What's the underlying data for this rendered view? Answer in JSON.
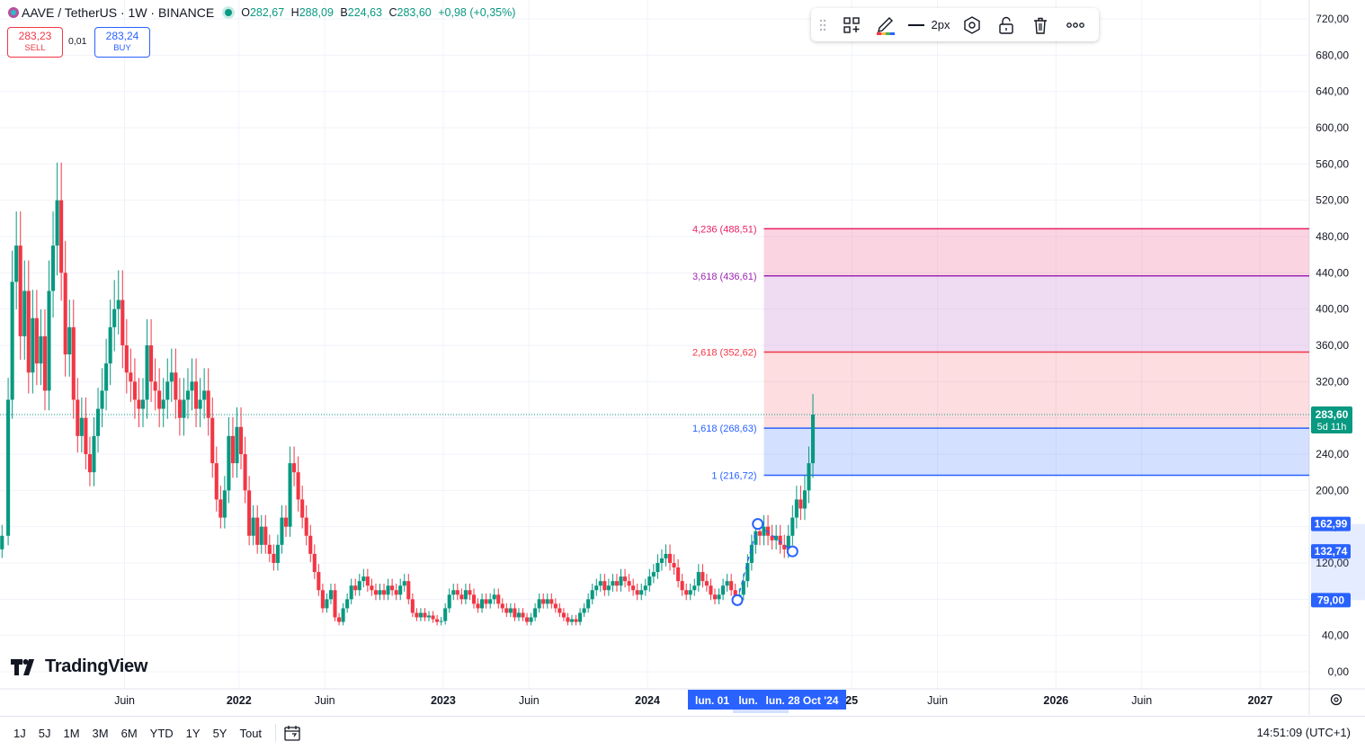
{
  "header": {
    "symbol": "AAVE / TetherUS · 1W · BINANCE",
    "ohlc": [
      {
        "k": "O",
        "v": "282,67"
      },
      {
        "k": "H",
        "v": "288,09"
      },
      {
        "k": "B",
        "v": "224,63"
      },
      {
        "k": "C",
        "v": "283,60"
      }
    ],
    "change": "+0,98 (+0,35%)",
    "sell_price": "283,23",
    "sell_label": "SELL",
    "buy_price": "283,24",
    "buy_label": "BUY",
    "spread": "0,01"
  },
  "toolbar": {
    "width_label": "2px",
    "icons": [
      "drag-handle-icon",
      "object-tree-icon",
      "pencil-color-icon",
      "line-style-icon",
      "settings-hexagon-icon",
      "lock-icon",
      "trash-icon",
      "more-icon"
    ]
  },
  "logo_text": "TradingView",
  "bottom": {
    "ranges": [
      "1J",
      "5J",
      "1M",
      "3M",
      "6M",
      "YTD",
      "1Y",
      "5Y",
      "Tout"
    ],
    "clock": "14:51:09 (UTC+1)"
  },
  "colors": {
    "up": "#089981",
    "down": "#f23645",
    "accent": "#2962ff",
    "fib_pink": "#e91e63",
    "fib_purple": "#9c27b0",
    "fib_red": "#f23645",
    "fib_blue": "#2962ff"
  },
  "chart_data": {
    "type": "candlestick",
    "title": "AAVE / TetherUS · 1W · BINANCE",
    "y_ticks": [
      "720,00",
      "680,00",
      "640,00",
      "600,00",
      "560,00",
      "520,00",
      "480,00",
      "440,00",
      "400,00",
      "360,00",
      "320,00",
      "280,00",
      "240,00",
      "200,00",
      "160,00",
      "120,00",
      "80,00",
      "40,00",
      "0,00"
    ],
    "y_tick_values": [
      720,
      680,
      640,
      600,
      560,
      520,
      480,
      440,
      400,
      360,
      320,
      280,
      240,
      200,
      160,
      120,
      80,
      40,
      0
    ],
    "ylim": [
      0,
      720
    ],
    "x_ticks": [
      {
        "t": 2021.44,
        "label": "Juin",
        "bold": false
      },
      {
        "t": 2022.0,
        "label": "2022",
        "bold": true
      },
      {
        "t": 2022.42,
        "label": "Juin",
        "bold": false
      },
      {
        "t": 2023.0,
        "label": "2023",
        "bold": true
      },
      {
        "t": 2023.42,
        "label": "Juin",
        "bold": false
      },
      {
        "t": 2024.0,
        "label": "2024",
        "bold": true
      },
      {
        "t": 2025.0,
        "label": "25",
        "bold": true
      },
      {
        "t": 2025.42,
        "label": "Juin",
        "bold": false
      },
      {
        "t": 2026.0,
        "label": "2026",
        "bold": true
      },
      {
        "t": 2026.42,
        "label": "Juin",
        "bold": false
      },
      {
        "t": 2027.0,
        "label": "2027",
        "bold": true
      }
    ],
    "xlim": [
      2020.83,
      2027.24
    ],
    "current_price": {
      "value": 283.6,
      "label": "283,60",
      "countdown": "5d 11h"
    },
    "price_labels": [
      {
        "value": 162.99,
        "label": "162,99"
      },
      {
        "value": 132.74,
        "label": "132,74"
      },
      {
        "value": 79.0,
        "label": "79,00"
      }
    ],
    "highlight_range": {
      "from": 79.0,
      "to": 162.99
    },
    "time_labels": [
      "lun. 01",
      "lun.",
      "lun. 28 Oct '24"
    ],
    "fib_extension": {
      "start_t": 2024.57,
      "end_t": 2027.24,
      "levels": [
        {
          "ratio": "4,236",
          "price": 488.51,
          "label": "4,236 (488,51)",
          "color": "#e91e63",
          "fill": "rgba(244,143,177,0.38)"
        },
        {
          "ratio": "3,618",
          "price": 436.61,
          "label": "3,618 (436,61)",
          "color": "#9c27b0",
          "fill": "rgba(206,147,216,0.32)"
        },
        {
          "ratio": "2,618",
          "price": 352.62,
          "label": "2,618 (352,62)",
          "color": "#f23645",
          "fill": "rgba(242,54,69,0.17)"
        },
        {
          "ratio": "1,618",
          "price": 268.63,
          "label": "1,618 (268,63)",
          "color": "#2962ff",
          "fill": "rgba(41,98,255,0.2)"
        },
        {
          "ratio": "1",
          "price": 216.72,
          "label": "1 (216,72)",
          "color": "#2962ff",
          "fill": null
        }
      ],
      "anchors": [
        {
          "t": 2024.44,
          "price": 79.0
        },
        {
          "t": 2024.54,
          "price": 162.99
        },
        {
          "t": 2024.71,
          "price": 132.74
        }
      ]
    },
    "series_close": [
      {
        "t": 2020.84,
        "c": 150
      },
      {
        "t": 2020.87,
        "c": 300
      },
      {
        "t": 2020.89,
        "c": 430
      },
      {
        "t": 2020.91,
        "c": 470
      },
      {
        "t": 2020.93,
        "c": 370
      },
      {
        "t": 2020.95,
        "c": 420
      },
      {
        "t": 2020.97,
        "c": 330
      },
      {
        "t": 2020.99,
        "c": 390
      },
      {
        "t": 2021.01,
        "c": 340
      },
      {
        "t": 2021.03,
        "c": 370
      },
      {
        "t": 2021.05,
        "c": 310
      },
      {
        "t": 2021.07,
        "c": 420
      },
      {
        "t": 2021.09,
        "c": 470
      },
      {
        "t": 2021.11,
        "c": 520
      },
      {
        "t": 2021.13,
        "c": 440
      },
      {
        "t": 2021.15,
        "c": 350
      },
      {
        "t": 2021.17,
        "c": 380
      },
      {
        "t": 2021.19,
        "c": 300
      },
      {
        "t": 2021.21,
        "c": 260
      },
      {
        "t": 2021.23,
        "c": 280
      },
      {
        "t": 2021.25,
        "c": 240
      },
      {
        "t": 2021.27,
        "c": 220
      },
      {
        "t": 2021.29,
        "c": 260
      },
      {
        "t": 2021.31,
        "c": 290
      },
      {
        "t": 2021.33,
        "c": 310
      },
      {
        "t": 2021.35,
        "c": 340
      },
      {
        "t": 2021.37,
        "c": 380
      },
      {
        "t": 2021.39,
        "c": 400
      },
      {
        "t": 2021.41,
        "c": 410
      },
      {
        "t": 2021.43,
        "c": 360
      },
      {
        "t": 2021.45,
        "c": 330
      },
      {
        "t": 2021.47,
        "c": 320
      },
      {
        "t": 2021.49,
        "c": 300
      },
      {
        "t": 2021.51,
        "c": 290
      },
      {
        "t": 2021.53,
        "c": 300
      },
      {
        "t": 2021.55,
        "c": 360
      },
      {
        "t": 2021.57,
        "c": 320
      },
      {
        "t": 2021.59,
        "c": 310
      },
      {
        "t": 2021.61,
        "c": 290
      },
      {
        "t": 2021.63,
        "c": 300
      },
      {
        "t": 2021.65,
        "c": 320
      },
      {
        "t": 2021.67,
        "c": 330
      },
      {
        "t": 2021.69,
        "c": 300
      },
      {
        "t": 2021.71,
        "c": 280
      },
      {
        "t": 2021.73,
        "c": 300
      },
      {
        "t": 2021.75,
        "c": 310
      },
      {
        "t": 2021.77,
        "c": 320
      },
      {
        "t": 2021.79,
        "c": 290
      },
      {
        "t": 2021.81,
        "c": 300
      },
      {
        "t": 2021.83,
        "c": 310
      },
      {
        "t": 2021.85,
        "c": 280
      },
      {
        "t": 2021.87,
        "c": 230
      },
      {
        "t": 2021.89,
        "c": 190
      },
      {
        "t": 2021.91,
        "c": 170
      },
      {
        "t": 2021.93,
        "c": 200
      },
      {
        "t": 2021.95,
        "c": 260
      },
      {
        "t": 2021.97,
        "c": 230
      },
      {
        "t": 2021.99,
        "c": 270
      },
      {
        "t": 2022.01,
        "c": 240
      },
      {
        "t": 2022.03,
        "c": 200
      },
      {
        "t": 2022.05,
        "c": 150
      },
      {
        "t": 2022.07,
        "c": 170
      },
      {
        "t": 2022.09,
        "c": 140
      },
      {
        "t": 2022.11,
        "c": 160
      },
      {
        "t": 2022.13,
        "c": 140
      },
      {
        "t": 2022.15,
        "c": 130
      },
      {
        "t": 2022.17,
        "c": 120
      },
      {
        "t": 2022.19,
        "c": 140
      },
      {
        "t": 2022.21,
        "c": 170
      },
      {
        "t": 2022.23,
        "c": 160
      },
      {
        "t": 2022.25,
        "c": 230
      },
      {
        "t": 2022.27,
        "c": 220
      },
      {
        "t": 2022.29,
        "c": 190
      },
      {
        "t": 2022.31,
        "c": 170
      },
      {
        "t": 2022.33,
        "c": 150
      },
      {
        "t": 2022.35,
        "c": 130
      },
      {
        "t": 2022.37,
        "c": 110
      },
      {
        "t": 2022.39,
        "c": 90
      },
      {
        "t": 2022.41,
        "c": 70
      },
      {
        "t": 2022.43,
        "c": 80
      },
      {
        "t": 2022.45,
        "c": 90
      },
      {
        "t": 2022.47,
        "c": 60
      },
      {
        "t": 2022.49,
        "c": 55
      },
      {
        "t": 2022.51,
        "c": 70
      },
      {
        "t": 2022.53,
        "c": 80
      },
      {
        "t": 2022.55,
        "c": 95
      },
      {
        "t": 2022.57,
        "c": 90
      },
      {
        "t": 2022.59,
        "c": 100
      },
      {
        "t": 2022.61,
        "c": 105
      },
      {
        "t": 2022.63,
        "c": 95
      },
      {
        "t": 2022.65,
        "c": 90
      },
      {
        "t": 2022.67,
        "c": 85
      },
      {
        "t": 2022.69,
        "c": 90
      },
      {
        "t": 2022.71,
        "c": 85
      },
      {
        "t": 2022.73,
        "c": 95
      },
      {
        "t": 2022.75,
        "c": 90
      },
      {
        "t": 2022.77,
        "c": 85
      },
      {
        "t": 2022.79,
        "c": 95
      },
      {
        "t": 2022.81,
        "c": 100
      },
      {
        "t": 2022.83,
        "c": 80
      },
      {
        "t": 2022.85,
        "c": 65
      },
      {
        "t": 2022.87,
        "c": 60
      },
      {
        "t": 2022.89,
        "c": 65
      },
      {
        "t": 2022.91,
        "c": 60
      },
      {
        "t": 2022.93,
        "c": 62
      },
      {
        "t": 2022.95,
        "c": 58
      },
      {
        "t": 2022.97,
        "c": 55
      },
      {
        "t": 2022.99,
        "c": 56
      },
      {
        "t": 2023.01,
        "c": 70
      },
      {
        "t": 2023.03,
        "c": 85
      },
      {
        "t": 2023.05,
        "c": 90
      },
      {
        "t": 2023.07,
        "c": 85
      },
      {
        "t": 2023.09,
        "c": 80
      },
      {
        "t": 2023.11,
        "c": 90
      },
      {
        "t": 2023.13,
        "c": 85
      },
      {
        "t": 2023.15,
        "c": 75
      },
      {
        "t": 2023.17,
        "c": 70
      },
      {
        "t": 2023.19,
        "c": 80
      },
      {
        "t": 2023.21,
        "c": 75
      },
      {
        "t": 2023.23,
        "c": 80
      },
      {
        "t": 2023.25,
        "c": 85
      },
      {
        "t": 2023.27,
        "c": 75
      },
      {
        "t": 2023.29,
        "c": 70
      },
      {
        "t": 2023.31,
        "c": 65
      },
      {
        "t": 2023.33,
        "c": 70
      },
      {
        "t": 2023.35,
        "c": 60
      },
      {
        "t": 2023.37,
        "c": 65
      },
      {
        "t": 2023.39,
        "c": 60
      },
      {
        "t": 2023.41,
        "c": 55
      },
      {
        "t": 2023.43,
        "c": 60
      },
      {
        "t": 2023.45,
        "c": 70
      },
      {
        "t": 2023.47,
        "c": 80
      },
      {
        "t": 2023.49,
        "c": 75
      },
      {
        "t": 2023.51,
        "c": 80
      },
      {
        "t": 2023.53,
        "c": 75
      },
      {
        "t": 2023.55,
        "c": 70
      },
      {
        "t": 2023.57,
        "c": 65
      },
      {
        "t": 2023.59,
        "c": 60
      },
      {
        "t": 2023.61,
        "c": 55
      },
      {
        "t": 2023.63,
        "c": 58
      },
      {
        "t": 2023.65,
        "c": 55
      },
      {
        "t": 2023.67,
        "c": 65
      },
      {
        "t": 2023.69,
        "c": 70
      },
      {
        "t": 2023.71,
        "c": 80
      },
      {
        "t": 2023.73,
        "c": 90
      },
      {
        "t": 2023.75,
        "c": 95
      },
      {
        "t": 2023.77,
        "c": 100
      },
      {
        "t": 2023.79,
        "c": 90
      },
      {
        "t": 2023.81,
        "c": 95
      },
      {
        "t": 2023.83,
        "c": 100
      },
      {
        "t": 2023.85,
        "c": 95
      },
      {
        "t": 2023.87,
        "c": 105
      },
      {
        "t": 2023.89,
        "c": 100
      },
      {
        "t": 2023.91,
        "c": 95
      },
      {
        "t": 2023.93,
        "c": 90
      },
      {
        "t": 2023.95,
        "c": 85
      },
      {
        "t": 2023.97,
        "c": 90
      },
      {
        "t": 2023.99,
        "c": 95
      },
      {
        "t": 2024.01,
        "c": 105
      },
      {
        "t": 2024.03,
        "c": 110
      },
      {
        "t": 2024.05,
        "c": 120
      },
      {
        "t": 2024.07,
        "c": 125
      },
      {
        "t": 2024.09,
        "c": 130
      },
      {
        "t": 2024.11,
        "c": 120
      },
      {
        "t": 2024.13,
        "c": 115
      },
      {
        "t": 2024.15,
        "c": 100
      },
      {
        "t": 2024.17,
        "c": 90
      },
      {
        "t": 2024.19,
        "c": 85
      },
      {
        "t": 2024.21,
        "c": 90
      },
      {
        "t": 2024.23,
        "c": 95
      },
      {
        "t": 2024.25,
        "c": 110
      },
      {
        "t": 2024.27,
        "c": 100
      },
      {
        "t": 2024.29,
        "c": 95
      },
      {
        "t": 2024.31,
        "c": 85
      },
      {
        "t": 2024.33,
        "c": 80
      },
      {
        "t": 2024.35,
        "c": 85
      },
      {
        "t": 2024.37,
        "c": 95
      },
      {
        "t": 2024.39,
        "c": 100
      },
      {
        "t": 2024.41,
        "c": 90
      },
      {
        "t": 2024.43,
        "c": 80
      },
      {
        "t": 2024.45,
        "c": 85
      },
      {
        "t": 2024.47,
        "c": 100
      },
      {
        "t": 2024.49,
        "c": 120
      },
      {
        "t": 2024.51,
        "c": 140
      },
      {
        "t": 2024.53,
        "c": 155
      },
      {
        "t": 2024.55,
        "c": 150
      },
      {
        "t": 2024.57,
        "c": 160
      },
      {
        "t": 2024.59,
        "c": 150
      },
      {
        "t": 2024.61,
        "c": 145
      },
      {
        "t": 2024.63,
        "c": 150
      },
      {
        "t": 2024.65,
        "c": 140
      },
      {
        "t": 2024.67,
        "c": 135
      },
      {
        "t": 2024.69,
        "c": 150
      },
      {
        "t": 2024.71,
        "c": 170
      },
      {
        "t": 2024.73,
        "c": 190
      },
      {
        "t": 2024.75,
        "c": 180
      },
      {
        "t": 2024.77,
        "c": 200
      },
      {
        "t": 2024.79,
        "c": 230
      },
      {
        "t": 2024.81,
        "c": 283.6
      }
    ]
  }
}
